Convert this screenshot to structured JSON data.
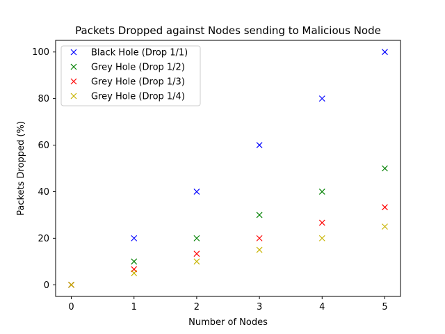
{
  "chart_data": {
    "type": "scatter",
    "title": "Packets Dropped against Nodes sending to Malicious Node",
    "xlabel": "Number of Nodes",
    "ylabel": "Packets Dropped (%)",
    "xlim": [
      -0.25,
      5.25
    ],
    "ylim": [
      -5,
      105
    ],
    "xticks": [
      "0",
      "1",
      "2",
      "3",
      "4",
      "5"
    ],
    "yticks": [
      "0",
      "20",
      "40",
      "60",
      "80",
      "100"
    ],
    "grid": false,
    "legend_position": "top-left",
    "marker": "x",
    "x": [
      0,
      1,
      2,
      3,
      4,
      5
    ],
    "series": [
      {
        "name": "Black Hole (Drop 1/1)",
        "color": "#0000ff",
        "values": [
          0,
          20,
          40,
          60,
          80,
          100
        ]
      },
      {
        "name": "Grey Hole (Drop 1/2)",
        "color": "#008000",
        "values": [
          0,
          10,
          20,
          30,
          40,
          50
        ]
      },
      {
        "name": "Grey Hole (Drop 1/3)",
        "color": "#ff0000",
        "values": [
          0,
          6.67,
          13.33,
          20,
          26.67,
          33.33
        ]
      },
      {
        "name": "Grey Hole (Drop 1/4)",
        "color": "#c8b400",
        "values": [
          0,
          5,
          10,
          15,
          20,
          25
        ]
      }
    ]
  }
}
